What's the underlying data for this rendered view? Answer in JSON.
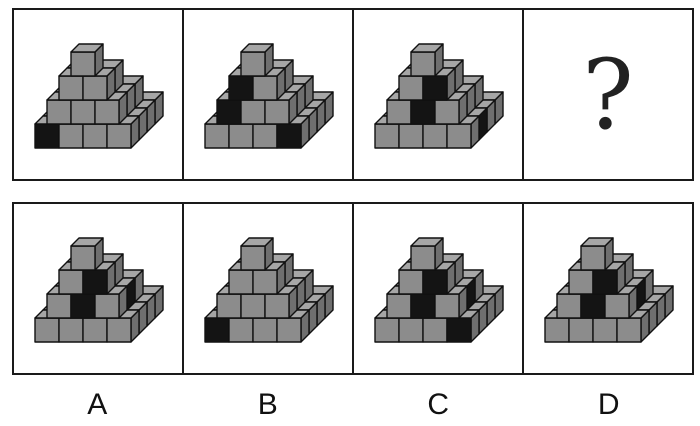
{
  "question_row": [
    {
      "id": "q1",
      "dark": [
        "b00"
      ]
    },
    {
      "id": "q2",
      "dark": [
        "m20",
        "b30"
      ]
    },
    {
      "id": "q3",
      "dark": [
        "m21",
        "m11",
        "bR"
      ]
    },
    {
      "id": "q4",
      "missing": true,
      "label": "?"
    }
  ],
  "option_row": [
    {
      "id": "A",
      "label": "A",
      "dark": [
        "m11",
        "mR"
      ]
    },
    {
      "id": "B",
      "label": "B",
      "dark": [
        "b00"
      ]
    },
    {
      "id": "C",
      "label": "C",
      "dark": [
        "m11",
        "mR",
        "b30"
      ]
    },
    {
      "id": "D",
      "label": "D",
      "dark": [
        "m11",
        "mR"
      ]
    }
  ],
  "colors": {
    "cube_face": "#8c8c8c",
    "cube_top": "#a6a6a6",
    "cube_side": "#6f6f6f",
    "dark": "#141414",
    "edge": "#111111"
  }
}
